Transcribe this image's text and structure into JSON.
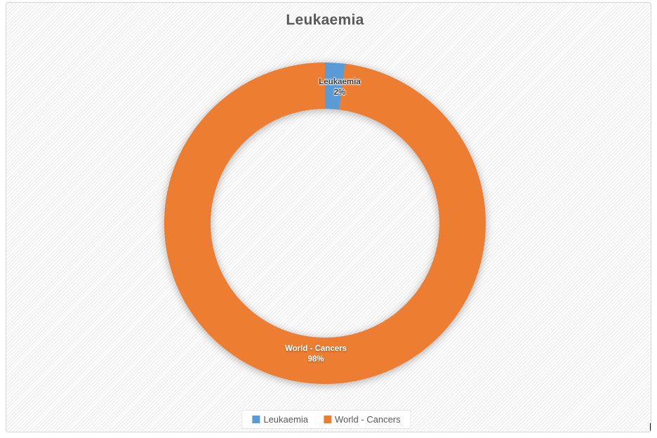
{
  "chart_data": {
    "type": "pie",
    "subtype": "doughnut",
    "title": "Leukaemia",
    "categories": [
      "Leukaemia",
      "World - Cancers"
    ],
    "values": [
      2,
      98
    ],
    "value_labels": [
      "2%",
      "98%"
    ],
    "series_colors": [
      "#5B9BD5",
      "#ED7D31"
    ],
    "data_labels": [
      {
        "name": "Leukaemia",
        "value": "2%"
      },
      {
        "name": "World - Cancers",
        "value": "98%"
      }
    ],
    "legend": {
      "position": "bottom",
      "items": [
        "Leukaemia",
        "World - Cancers"
      ]
    },
    "hole_ratio": 0.71,
    "start_angle_deg": 0,
    "direction": "clockwise"
  },
  "theme": {
    "background-color": "#FFFFFF",
    "stripe-color": "#EFEFEF",
    "frame-border-color": "#D6D6D6",
    "title-color": "#595959",
    "legend-text-color": "#595959",
    "label-dark-color": "#3F3F3F",
    "label-light-color": "#FFFFFF"
  }
}
